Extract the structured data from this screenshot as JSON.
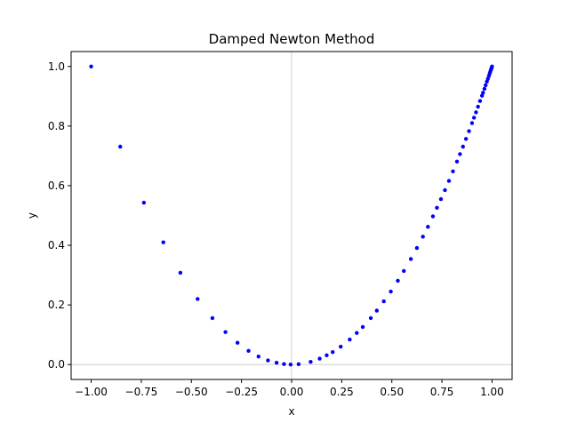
{
  "chart_data": {
    "type": "scatter",
    "title": "Damped Newton Method",
    "xlabel": "x",
    "ylabel": "y",
    "xlim": [
      -1.1,
      1.1
    ],
    "ylim": [
      -0.05,
      1.05
    ],
    "x_ticks": [
      -1.0,
      -0.75,
      -0.5,
      -0.25,
      0.0,
      0.25,
      0.5,
      0.75,
      1.0
    ],
    "x_tick_labels": [
      "−1.00",
      "−0.75",
      "−0.50",
      "−0.25",
      "0.00",
      "0.25",
      "0.50",
      "0.75",
      "1.00"
    ],
    "y_ticks": [
      0.0,
      0.2,
      0.4,
      0.6,
      0.8,
      1.0
    ],
    "y_tick_labels": [
      "0.0",
      "0.2",
      "0.4",
      "0.6",
      "0.8",
      "1.0"
    ],
    "reference_lines": {
      "x": 0,
      "y": 0,
      "color": "#d9d9d9"
    },
    "grid": false,
    "legend": "none",
    "marker_color": "#0000ff",
    "x": [
      -1.0,
      -0.855,
      -0.737,
      -0.64,
      -0.555,
      -0.469,
      -0.395,
      -0.33,
      -0.27,
      -0.215,
      -0.165,
      -0.118,
      -0.075,
      -0.038,
      -0.005,
      0.035,
      0.095,
      0.14,
      0.175,
      0.205,
      0.245,
      0.29,
      0.325,
      0.355,
      0.395,
      0.425,
      0.46,
      0.495,
      0.53,
      0.56,
      0.595,
      0.625,
      0.655,
      0.68,
      0.705,
      0.725,
      0.745,
      0.765,
      0.785,
      0.805,
      0.825,
      0.84,
      0.855,
      0.87,
      0.885,
      0.9,
      0.91,
      0.92,
      0.93,
      0.94,
      0.95,
      0.955,
      0.962,
      0.968,
      0.974,
      0.979,
      0.984,
      0.988,
      0.991,
      0.994,
      0.996,
      0.998,
      1.0
    ],
    "y": [
      1.0,
      0.731,
      0.543,
      0.41,
      0.308,
      0.22,
      0.156,
      0.109,
      0.073,
      0.046,
      0.027,
      0.014,
      0.006,
      0.0015,
      0.0,
      0.0012,
      0.009,
      0.02,
      0.031,
      0.042,
      0.06,
      0.084,
      0.106,
      0.126,
      0.156,
      0.181,
      0.212,
      0.245,
      0.281,
      0.314,
      0.354,
      0.391,
      0.429,
      0.462,
      0.497,
      0.526,
      0.555,
      0.585,
      0.616,
      0.648,
      0.681,
      0.706,
      0.731,
      0.757,
      0.783,
      0.81,
      0.828,
      0.846,
      0.865,
      0.884,
      0.902,
      0.912,
      0.925,
      0.937,
      0.949,
      0.958,
      0.968,
      0.976,
      0.982,
      0.988,
      0.992,
      0.996,
      1.0
    ]
  }
}
